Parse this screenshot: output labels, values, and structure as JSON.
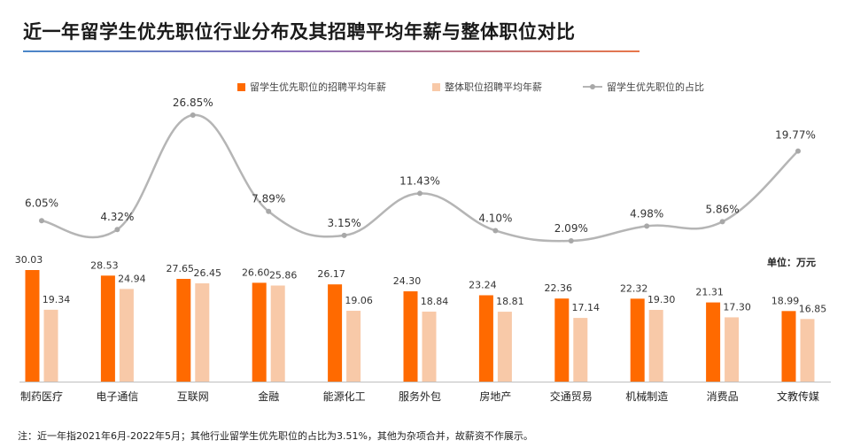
{
  "title": "近一年留学生优先职位行业分布及其招聘平均年薪与整体职位对比",
  "unit_label": "单位：万元",
  "footnote": "注：近一年指2021年6月-2022年5月；其他行业留学生优先职位的占比为3.51%，其他为杂项合并，故薪资不作展示。",
  "colors": {
    "primary_bar": "#ff6a00",
    "secondary_bar": "#f8c9a8",
    "line": "#b5b5b5",
    "marker": "#a8a8a8"
  },
  "chart_data": {
    "type": "bar",
    "categories": [
      "制药医疗",
      "电子通信",
      "互联网",
      "金融",
      "能源化工",
      "服务外包",
      "房地产",
      "交通贸易",
      "机械制造",
      "消费品",
      "文教传媒"
    ],
    "series": [
      {
        "name": "留学生优先职位的招聘平均年薪",
        "type": "bar",
        "values": [
          30.03,
          28.53,
          27.65,
          26.6,
          26.17,
          24.3,
          23.24,
          22.36,
          22.32,
          21.31,
          18.99
        ],
        "labels": [
          "30.03",
          "28.53",
          "27.65",
          "26.60",
          "26.17",
          "24.30",
          "23.24",
          "22.36",
          "22.32",
          "21.31",
          "18.99"
        ]
      },
      {
        "name": "整体职位招聘平均年薪",
        "type": "bar",
        "values": [
          19.34,
          24.94,
          26.45,
          25.86,
          19.06,
          18.84,
          18.81,
          17.14,
          19.3,
          17.3,
          16.85
        ],
        "labels": [
          "19.34",
          "24.94",
          "26.45",
          "25.86",
          "19.06",
          "18.84",
          "18.81",
          "17.14",
          "19.30",
          "17.30",
          "16.85"
        ]
      },
      {
        "name": "留学生优先职位的占比",
        "type": "line",
        "values": [
          6.05,
          4.32,
          26.85,
          7.89,
          3.15,
          11.43,
          4.1,
          2.09,
          4.98,
          5.86,
          19.77
        ],
        "labels": [
          "6.05%",
          "4.32%",
          "26.85%",
          "7.89%",
          "3.15%",
          "11.43%",
          "4.10%",
          "2.09%",
          "4.98%",
          "5.86%",
          "19.77%"
        ]
      }
    ],
    "ylim_bar": [
      0,
      40
    ],
    "ylim_line": [
      0,
      28
    ],
    "legend_position": "top"
  }
}
